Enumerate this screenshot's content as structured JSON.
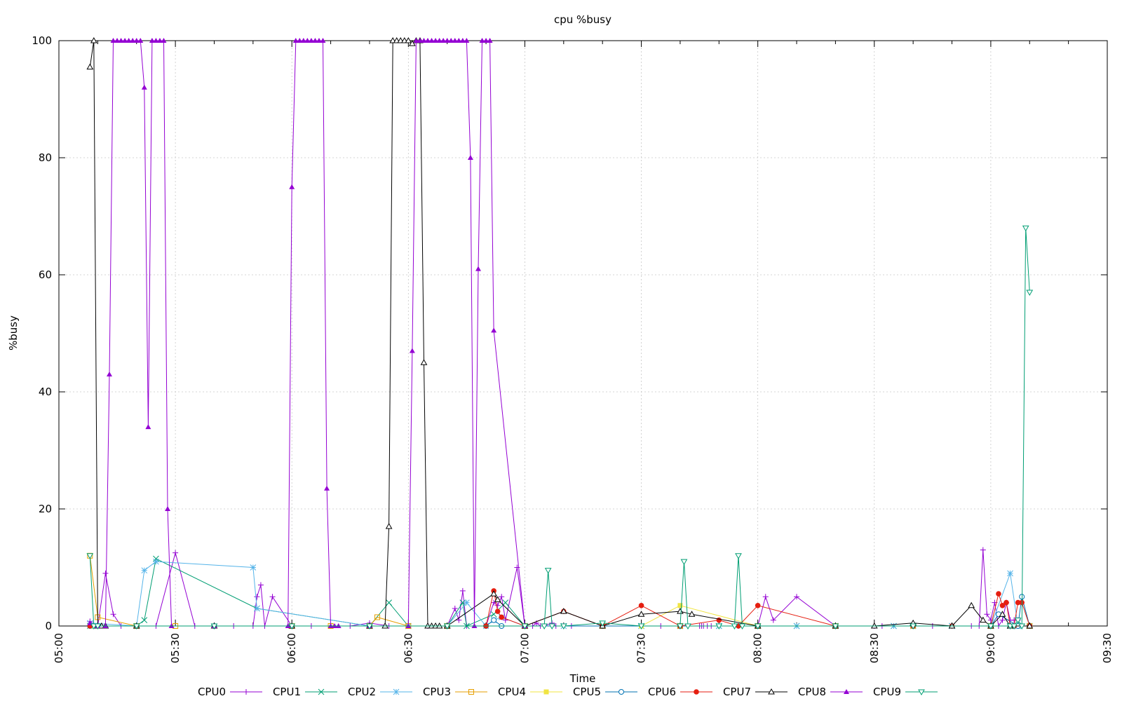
{
  "chart_data": {
    "type": "line",
    "title": "cpu %busy",
    "xlabel": "Time",
    "ylabel": "%busy",
    "xlim": [
      300,
      570
    ],
    "ylim": [
      0,
      100
    ],
    "xticks": [
      300,
      330,
      360,
      390,
      420,
      450,
      480,
      510,
      540,
      570
    ],
    "xtick_labels": [
      "05:00",
      "05:30",
      "06:00",
      "06:30",
      "07:00",
      "07:30",
      "08:00",
      "08:30",
      "09:00",
      "09:30"
    ],
    "yticks": [
      0,
      20,
      40,
      60,
      80,
      100
    ],
    "ytick_labels": [
      "0",
      "20",
      "40",
      "60",
      "80",
      "100"
    ],
    "grid": true,
    "legend_position": "bottom",
    "series": [
      {
        "name": "CPU0",
        "color": "#9400d3",
        "marker": "plus",
        "x": [
          308,
          310,
          312,
          314,
          316,
          320,
          325,
          330,
          335,
          340,
          345,
          350,
          351,
          352,
          353,
          355,
          360,
          365,
          370,
          375,
          380,
          385,
          390,
          395,
          400,
          402,
          403,
          404,
          405,
          410,
          412,
          413,
          414,
          415,
          418,
          420,
          422,
          423,
          424,
          425,
          427,
          428,
          430,
          432,
          440,
          450,
          455,
          460,
          465,
          465.5,
          466,
          467,
          468,
          470,
          475,
          480,
          482,
          484,
          490,
          500,
          510,
          512,
          515,
          520,
          525,
          530,
          535,
          537,
          538,
          539,
          540,
          541,
          542,
          543,
          544,
          545,
          546,
          547,
          548,
          550
        ],
        "y": [
          0.8,
          0,
          9,
          2,
          0,
          0,
          0,
          12.5,
          0,
          0,
          0,
          0,
          5,
          7,
          0,
          5,
          0,
          0,
          0,
          0,
          0.5,
          0,
          0,
          0,
          0,
          3,
          1,
          6,
          0,
          0,
          4,
          3.5,
          5,
          1,
          10,
          0,
          0,
          0.5,
          0,
          0,
          0.5,
          0,
          0,
          0,
          0,
          0,
          0,
          0,
          0,
          0,
          0,
          0,
          0,
          0,
          0,
          0,
          5,
          1,
          5,
          0,
          0,
          0,
          0,
          0,
          0,
          0,
          0,
          0,
          13,
          2,
          1,
          4,
          0,
          1,
          4,
          1,
          1,
          1,
          0,
          0
        ]
      },
      {
        "name": "CPU1",
        "color": "#009e73",
        "marker": "cross",
        "x": [
          308,
          320,
          322,
          325,
          351,
          380,
          385,
          390,
          400,
          404,
          405,
          412,
          415,
          420,
          450,
          460,
          470,
          480,
          490,
          500,
          515,
          520,
          530,
          540,
          545,
          547,
          550
        ],
        "y": [
          0,
          0,
          1,
          11.5,
          3,
          0,
          4,
          0,
          0,
          4,
          0,
          2,
          4,
          0,
          0,
          0,
          0,
          0,
          0,
          0,
          0,
          0,
          0,
          0,
          0,
          0,
          0
        ]
      },
      {
        "name": "CPU2",
        "color": "#56b4e9",
        "marker": "star",
        "x": [
          308,
          320,
          322,
          325,
          350,
          351,
          380,
          390,
          400,
          405,
          410,
          412,
          414,
          420,
          430,
          450,
          460,
          470,
          480,
          490,
          500,
          515,
          520,
          530,
          540,
          545,
          547,
          550
        ],
        "y": [
          0.5,
          0,
          9.5,
          11,
          10,
          3,
          0,
          0,
          0,
          4,
          0,
          1,
          1.5,
          0,
          0,
          0,
          0,
          0,
          0,
          0,
          0,
          0,
          0,
          0,
          0,
          9,
          0,
          0
        ]
      },
      {
        "name": "CPU3",
        "color": "#e69f00",
        "marker": "square",
        "x": [
          308,
          310,
          320,
          330,
          360,
          370,
          380,
          382,
          390,
          400,
          420,
          440,
          460,
          480,
          500,
          520,
          540,
          550
        ],
        "y": [
          12,
          1.5,
          0,
          0,
          0,
          0,
          0,
          1.5,
          0,
          0,
          0,
          0,
          0,
          0,
          0,
          0,
          0,
          0
        ]
      },
      {
        "name": "CPU4",
        "color": "#f0e442",
        "marker": "square-filled",
        "x": [
          308,
          320,
          340,
          360,
          380,
          400,
          420,
          450,
          460,
          480,
          500,
          520,
          540,
          550
        ],
        "y": [
          0,
          0,
          0,
          0,
          0,
          0,
          0,
          0,
          3.5,
          0,
          0,
          0,
          0,
          0
        ]
      },
      {
        "name": "CPU5",
        "color": "#0072b2",
        "marker": "circle",
        "x": [
          308,
          320,
          340,
          360,
          380,
          400,
          410,
          412,
          414,
          420,
          440,
          460,
          480,
          500,
          520,
          540,
          542,
          547,
          548,
          550
        ],
        "y": [
          0,
          0,
          0,
          0,
          0,
          0,
          0,
          1,
          0,
          0,
          0,
          0,
          0,
          0,
          0,
          0,
          2,
          0,
          5,
          0
        ]
      },
      {
        "name": "CPU6",
        "color": "#e51e10",
        "marker": "circle-filled",
        "x": [
          308,
          320,
          340,
          360,
          380,
          400,
          410,
          412,
          413,
          414,
          420,
          430,
          440,
          450,
          460,
          470,
          475,
          480,
          500,
          520,
          530,
          540,
          542,
          543,
          544,
          545,
          546,
          547,
          548,
          550
        ],
        "y": [
          0,
          0,
          0,
          0,
          0,
          0,
          0,
          6,
          2.5,
          1.5,
          0,
          2.5,
          0,
          3.5,
          0,
          1,
          0,
          3.5,
          0,
          0,
          0,
          0,
          5.5,
          3.5,
          4,
          0,
          0,
          4,
          4,
          0
        ]
      },
      {
        "name": "CPU7",
        "color": "#000000",
        "marker": "triangle",
        "x": [
          308,
          309,
          310,
          311,
          312,
          320,
          340,
          360,
          380,
          384,
          385,
          386,
          387,
          388,
          389,
          390,
          391,
          392,
          393,
          394,
          395,
          396,
          397,
          398,
          400,
          412,
          413,
          420,
          430,
          440,
          450,
          460,
          463,
          480,
          500,
          510,
          520,
          530,
          535,
          538,
          540,
          543,
          545,
          550
        ],
        "y": [
          95.5,
          100,
          0,
          0,
          0,
          0,
          0,
          0,
          0,
          0,
          17,
          100,
          100,
          100,
          100,
          100,
          99.5,
          100,
          100,
          45,
          0,
          0,
          0,
          0,
          0,
          5.5,
          4.5,
          0,
          2.5,
          0,
          2,
          2.5,
          2,
          0,
          0,
          0,
          0.5,
          0,
          3.5,
          1,
          0,
          2,
          0,
          0
        ]
      },
      {
        "name": "CPU8",
        "color": "#9400d3",
        "marker": "triangle-filled",
        "x": [
          308,
          310,
          312,
          313,
          314,
          315,
          316,
          317,
          318,
          319,
          320,
          321,
          322,
          323,
          324,
          325,
          326,
          327,
          328,
          329,
          340,
          359,
          360,
          361,
          362,
          363,
          364,
          365,
          366,
          367,
          368,
          369,
          370,
          371,
          372,
          380,
          390,
          391,
          392,
          393,
          394,
          395,
          396,
          397,
          398,
          399,
          400,
          401,
          402,
          403,
          404,
          405,
          406,
          407,
          408,
          409,
          410,
          411,
          412,
          420
        ],
        "y": [
          0.5,
          0,
          0,
          43,
          100,
          100,
          100,
          100,
          100,
          100,
          100,
          100,
          92,
          34,
          100,
          100,
          100,
          100,
          20,
          0,
          0,
          0,
          75,
          100,
          100,
          100,
          100,
          100,
          100,
          100,
          100,
          23.5,
          0,
          0,
          0,
          0,
          0,
          47,
          100,
          100,
          100,
          100,
          100,
          100,
          100,
          100,
          100,
          100,
          100,
          100,
          100,
          100,
          80,
          0,
          61,
          100,
          100,
          100,
          50.5,
          0
        ]
      },
      {
        "name": "CPU9",
        "color": "#009e73",
        "marker": "triangle-down",
        "x": [
          308,
          309,
          310,
          320,
          340,
          360,
          380,
          400,
          420,
          425,
          426,
          427,
          430,
          440,
          450,
          460,
          461,
          462,
          470,
          474,
          475,
          476,
          480,
          500,
          520,
          540,
          545,
          546,
          547,
          548,
          549,
          550
        ],
        "y": [
          12,
          0,
          0,
          0,
          0,
          0,
          0,
          0,
          0,
          0,
          9.5,
          0,
          0,
          0.5,
          0,
          0,
          11,
          0,
          0,
          0,
          12,
          0,
          0,
          0,
          0,
          0,
          0,
          0,
          1,
          0,
          68,
          57
        ]
      }
    ]
  }
}
